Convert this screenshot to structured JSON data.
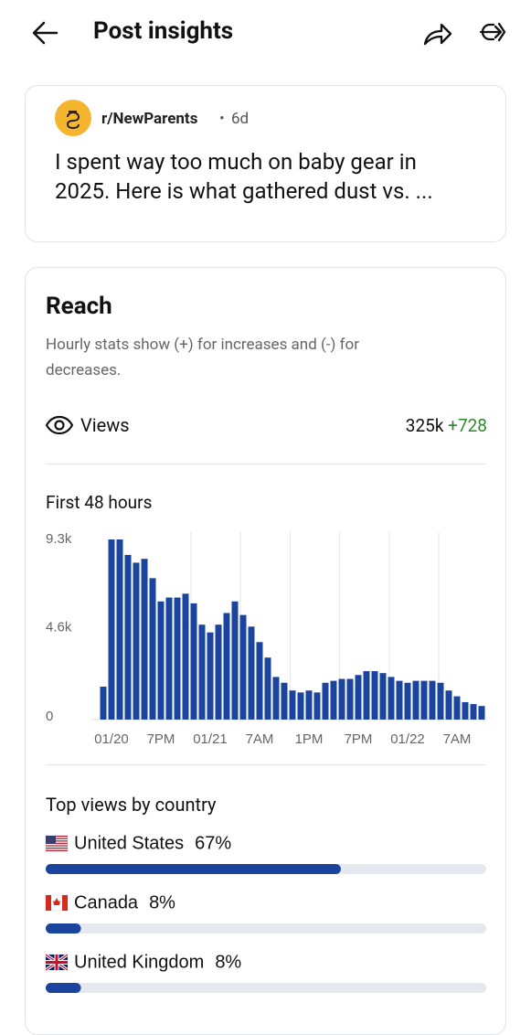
{
  "header": {
    "title": "Post insights"
  },
  "post": {
    "community": "r/NewParents",
    "age": "6d",
    "title": "I spent way too much on baby gear in 2025. Here is what gathered dust vs. ..."
  },
  "reach": {
    "title": "Reach",
    "description": "Hourly stats show (+) for increases and (-) for decreases.",
    "views_label": "Views",
    "views_value": "325k",
    "views_change": "+728"
  },
  "chart_data": {
    "type": "bar",
    "title": "First 48 hours",
    "color": "#1a449e",
    "categories": [
      null,
      "01/20",
      null,
      null,
      null,
      null,
      null,
      "7PM",
      null,
      null,
      null,
      null,
      null,
      "01/21",
      null,
      null,
      null,
      null,
      null,
      "7AM",
      null,
      null,
      null,
      null,
      null,
      "1PM",
      null,
      null,
      null,
      null,
      null,
      "7PM",
      null,
      null,
      null,
      null,
      null,
      "01/22",
      null,
      null,
      null,
      null,
      null,
      "7AM",
      null,
      null,
      null
    ],
    "values": [
      1700,
      9300,
      9300,
      8500,
      8100,
      8300,
      7300,
      6100,
      6300,
      6300,
      6500,
      6000,
      4900,
      4500,
      4900,
      5500,
      6100,
      5400,
      4800,
      4000,
      3200,
      2200,
      1900,
      1500,
      1400,
      1500,
      1400,
      1900,
      2000,
      2100,
      2100,
      2300,
      2500,
      2500,
      2400,
      2200,
      2000,
      1900,
      2000,
      2000,
      2000,
      1900,
      1500,
      1200,
      900,
      800,
      700
    ],
    "ylim": [
      0,
      9300
    ],
    "yticks": [
      0,
      {
        "value": 4600,
        "label": "4.6k"
      },
      {
        "value": 9300,
        "label": "9.3k"
      }
    ]
  },
  "countries": {
    "title": "Top views by country",
    "names": [
      "United States",
      "Canada",
      "United Kingdom"
    ],
    "values": [
      67,
      8,
      8
    ],
    "value_labels": [
      "67%",
      "8%",
      "8%"
    ],
    "color": "#1a449e",
    "track_color": "#e6e8ef"
  }
}
